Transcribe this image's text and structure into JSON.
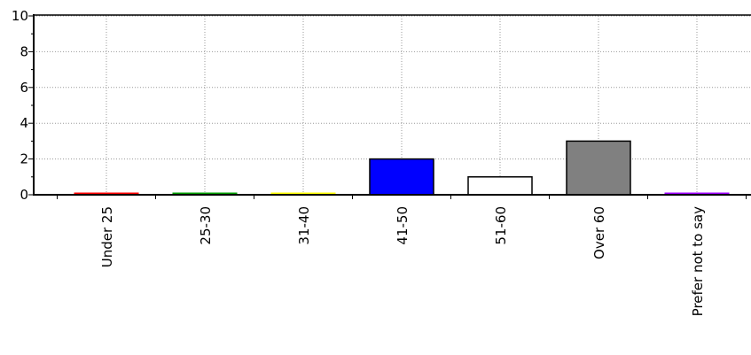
{
  "chart_data": {
    "type": "bar",
    "categories": [
      "Under 25",
      "25-30",
      "31-40",
      "41-50",
      "51-60",
      "Over 60",
      "Prefer not to say"
    ],
    "values": [
      0,
      0,
      0,
      2,
      1,
      3,
      0
    ],
    "colors": [
      "#ff0000",
      "#00a000",
      "#ffff00",
      "#0000ff",
      "#ffffff",
      "#808080",
      "#a000ff"
    ],
    "ylim": [
      0,
      10
    ],
    "yticks": [
      0,
      2,
      4,
      6,
      8,
      10
    ],
    "grid": true
  }
}
